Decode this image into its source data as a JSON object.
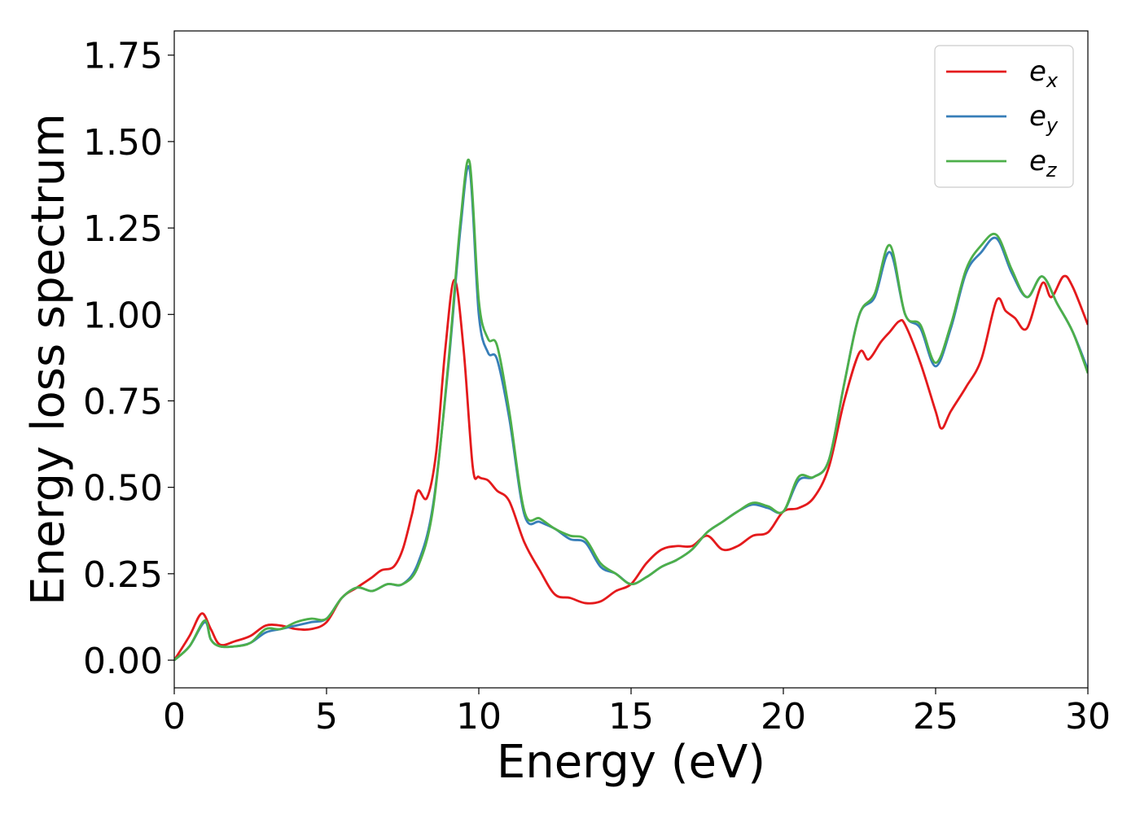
{
  "chart_data": {
    "type": "line",
    "title": "",
    "xlabel": "Energy (eV)",
    "ylabel": "Energy loss spectrum",
    "xlim": [
      0,
      30
    ],
    "ylim": [
      -0.08,
      1.82
    ],
    "xticks": [
      0,
      5,
      10,
      15,
      20,
      25,
      30
    ],
    "xtick_labels": [
      "0",
      "5",
      "10",
      "15",
      "20",
      "25",
      "30"
    ],
    "yticks": [
      0.0,
      0.25,
      0.5,
      0.75,
      1.0,
      1.25,
      1.5,
      1.75
    ],
    "ytick_labels": [
      "0.00",
      "0.25",
      "0.50",
      "0.75",
      "1.00",
      "1.25",
      "1.50",
      "1.75"
    ],
    "grid": false,
    "legend_position": "top-right",
    "series": [
      {
        "name": "e_x",
        "label_base": "e",
        "label_sub": "x",
        "color": "#e41a1c",
        "x": [
          0,
          0.5,
          0.9,
          1.2,
          1.5,
          2.0,
          2.5,
          3.0,
          3.5,
          4.0,
          4.5,
          5.0,
          5.5,
          6.0,
          6.5,
          6.8,
          7.2,
          7.5,
          7.8,
          8.0,
          8.3,
          8.6,
          8.9,
          9.2,
          9.5,
          9.8,
          10.0,
          10.3,
          10.6,
          11.0,
          11.5,
          12.0,
          12.5,
          13.0,
          13.5,
          14.0,
          14.5,
          15.0,
          15.5,
          16.0,
          16.5,
          17.0,
          17.5,
          18.0,
          18.5,
          19.0,
          19.5,
          20.0,
          20.5,
          21.0,
          21.5,
          22.0,
          22.5,
          22.8,
          23.2,
          23.5,
          23.8,
          24.0,
          24.5,
          25.0,
          25.2,
          25.5,
          26.0,
          26.5,
          27.0,
          27.3,
          27.6,
          28.0,
          28.5,
          28.8,
          29.2,
          29.5,
          30.0
        ],
        "y": [
          0.0,
          0.07,
          0.135,
          0.09,
          0.045,
          0.055,
          0.07,
          0.1,
          0.1,
          0.09,
          0.09,
          0.11,
          0.18,
          0.21,
          0.24,
          0.26,
          0.27,
          0.32,
          0.42,
          0.49,
          0.47,
          0.6,
          0.9,
          1.1,
          0.9,
          0.56,
          0.53,
          0.52,
          0.49,
          0.46,
          0.34,
          0.26,
          0.19,
          0.18,
          0.165,
          0.17,
          0.2,
          0.22,
          0.28,
          0.32,
          0.33,
          0.33,
          0.36,
          0.32,
          0.33,
          0.36,
          0.37,
          0.43,
          0.44,
          0.47,
          0.56,
          0.75,
          0.89,
          0.87,
          0.92,
          0.95,
          0.98,
          0.97,
          0.86,
          0.72,
          0.67,
          0.72,
          0.79,
          0.87,
          1.04,
          1.01,
          0.99,
          0.96,
          1.09,
          1.05,
          1.11,
          1.08,
          0.97
        ]
      },
      {
        "name": "e_y",
        "label_base": "e",
        "label_sub": "y",
        "color": "#377eb8",
        "x": [
          0,
          0.5,
          1.0,
          1.2,
          1.5,
          2.0,
          2.5,
          3.0,
          3.5,
          4.0,
          4.5,
          5.0,
          5.5,
          6.0,
          6.5,
          7.0,
          7.5,
          8.0,
          8.5,
          9.0,
          9.4,
          9.7,
          10.0,
          10.3,
          10.6,
          11.0,
          11.5,
          12.0,
          12.5,
          13.0,
          13.5,
          14.0,
          14.5,
          15.0,
          15.5,
          16.0,
          16.5,
          17.0,
          17.5,
          18.0,
          18.5,
          19.0,
          19.5,
          20.0,
          20.5,
          21.0,
          21.5,
          22.0,
          22.5,
          23.0,
          23.5,
          24.0,
          24.5,
          25.0,
          25.5,
          26.0,
          26.5,
          27.0,
          27.5,
          28.0,
          28.5,
          29.0,
          29.5,
          30.0
        ],
        "y": [
          0.0,
          0.04,
          0.11,
          0.06,
          0.04,
          0.04,
          0.05,
          0.08,
          0.09,
          0.1,
          0.11,
          0.12,
          0.18,
          0.21,
          0.2,
          0.22,
          0.22,
          0.28,
          0.45,
          0.85,
          1.25,
          1.42,
          1.0,
          0.89,
          0.87,
          0.7,
          0.42,
          0.4,
          0.38,
          0.35,
          0.34,
          0.27,
          0.25,
          0.22,
          0.24,
          0.27,
          0.29,
          0.32,
          0.37,
          0.4,
          0.43,
          0.45,
          0.44,
          0.43,
          0.52,
          0.53,
          0.58,
          0.8,
          1.0,
          1.05,
          1.18,
          1.0,
          0.96,
          0.85,
          0.96,
          1.12,
          1.18,
          1.22,
          1.12,
          1.05,
          1.11,
          1.03,
          0.95,
          0.84
        ]
      },
      {
        "name": "e_z",
        "label_base": "e",
        "label_sub": "z",
        "color": "#4daf4a",
        "x": [
          0,
          0.5,
          1.0,
          1.2,
          1.5,
          2.0,
          2.5,
          3.0,
          3.5,
          4.0,
          4.5,
          5.0,
          5.5,
          6.0,
          6.5,
          7.0,
          7.5,
          8.0,
          8.5,
          9.0,
          9.4,
          9.7,
          10.0,
          10.3,
          10.6,
          11.0,
          11.5,
          12.0,
          12.5,
          13.0,
          13.5,
          14.0,
          14.5,
          15.0,
          15.5,
          16.0,
          16.5,
          17.0,
          17.5,
          18.0,
          18.5,
          19.0,
          19.5,
          20.0,
          20.5,
          21.0,
          21.5,
          22.0,
          22.5,
          23.0,
          23.5,
          24.0,
          24.5,
          25.0,
          25.5,
          26.0,
          26.5,
          27.0,
          27.5,
          28.0,
          28.5,
          29.0,
          29.5,
          30.0
        ],
        "y": [
          0.0,
          0.04,
          0.115,
          0.06,
          0.04,
          0.04,
          0.05,
          0.09,
          0.09,
          0.11,
          0.12,
          0.12,
          0.18,
          0.21,
          0.2,
          0.22,
          0.22,
          0.27,
          0.44,
          0.86,
          1.27,
          1.44,
          1.04,
          0.93,
          0.91,
          0.72,
          0.43,
          0.41,
          0.38,
          0.36,
          0.35,
          0.28,
          0.25,
          0.22,
          0.24,
          0.27,
          0.29,
          0.32,
          0.37,
          0.4,
          0.43,
          0.455,
          0.445,
          0.43,
          0.53,
          0.53,
          0.58,
          0.8,
          1.0,
          1.06,
          1.2,
          1.0,
          0.97,
          0.86,
          0.97,
          1.13,
          1.2,
          1.23,
          1.13,
          1.05,
          1.11,
          1.03,
          0.95,
          0.83
        ]
      }
    ]
  }
}
